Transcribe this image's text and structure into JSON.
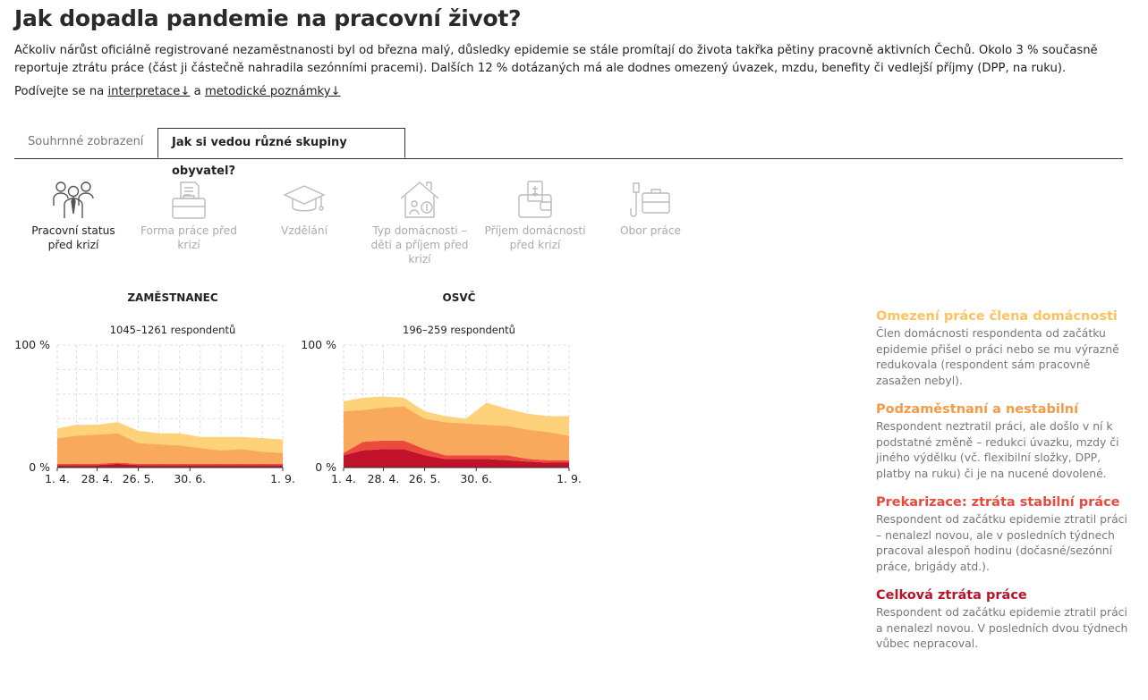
{
  "page": {
    "title": "Jak dopadla pandemie na pracovní život?",
    "intro": "Ačkoliv nárůst oficiálně registrované nezaměstnanosti byl od března malý, důsledky epidemie se stále promítají do života takřka pětiny pracovně aktivních Čechů. Okolo 3 % současně reportuje ztrátu práce (část ji částečně nahradila sezónními pracemi). Dalších 12 % dotázaných má ale dodnes omezený úvazek, mzdu, benefity či vedlejší příjmy (DPP, na ruku).",
    "links_prefix": "Podívejte se na ",
    "link_interpretace": "interpretace↓",
    "links_and": " a ",
    "link_metodika": "metodické poznámky↓"
  },
  "tabs": [
    {
      "label": "Souhrnné zobrazení",
      "active": false
    },
    {
      "label": "Jak si vedou různé skupiny obyvatel?",
      "active": true
    }
  ],
  "categories": [
    {
      "label": "Pracovní status před krizí",
      "icon": "people-icon",
      "active": true
    },
    {
      "label": "Forma práce před krizí",
      "icon": "briefcase-contract-icon",
      "active": false
    },
    {
      "label": "Vzdělání",
      "icon": "graduation-cap-icon",
      "active": false
    },
    {
      "label": "Typ domácnosti – děti a příjem před krizí",
      "icon": "house-money-icon",
      "active": false
    },
    {
      "label": "Příjem domácnosti před krizí",
      "icon": "wallet-icon",
      "active": false
    },
    {
      "label": "Obor práce",
      "icon": "tools-briefcase-icon",
      "active": false
    }
  ],
  "colors": {
    "omezeni": "#fdd27a",
    "podzamestnani": "#f9a95b",
    "prekarizace": "#ec4a3c",
    "ztrata": "#c0132b",
    "grid": "#dddddd"
  },
  "legend": [
    {
      "key": "omezeni",
      "title": "Omezení práce člena domácnosti",
      "desc": "Člen domácnosti respondenta od začátku epidemie přišel o práci nebo se mu výrazně redukovala (respondent sám pracovně zasažen nebyl)."
    },
    {
      "key": "podzamestnani",
      "title": "Podzaměstnaní a nestabilní",
      "desc": "Respondent neztratil práci, ale došlo v ní k podstatné změně – redukci úvazku, mzdy či jiného výdělku (vč. flexibilní složky, DPP, platby na ruku) či je na nucené dovolené."
    },
    {
      "key": "prekarizace",
      "title": "Prekarizace: ztráta stabilní práce",
      "desc": "Respondent od začátku epidemie ztratil práci – nenalezl novou, ale v posledních týdnech pracoval alespoň hodinu (dočasné/sezónní práce, brigády atd.)."
    },
    {
      "key": "ztrata",
      "title": "Celková ztráta práce",
      "desc": "Respondent od začátku epidemie ztratil práci a nenalezl novou. V posledních dvou týdnech vůbec nepracoval."
    }
  ],
  "chart_data": [
    {
      "type": "area",
      "stacked": true,
      "title": "ZAMĚSTNANEC",
      "subtitle": "1045–1261 respondentů",
      "x": [
        "2020-04-01",
        "2020-04-14",
        "2020-04-28",
        "2020-05-12",
        "2020-05-26",
        "2020-06-09",
        "2020-06-23",
        "2020-07-07",
        "2020-07-21",
        "2020-08-04",
        "2020-08-18",
        "2020-09-01"
      ],
      "x_tick_labels": [
        "1. 4.",
        "28. 4.",
        "26. 5.",
        "30. 6.",
        "1. 9."
      ],
      "x_tick_dates": [
        "2020-04-01",
        "2020-04-28",
        "2020-05-26",
        "2020-06-30",
        "2020-09-01"
      ],
      "y_tick_labels": [
        "100 %",
        "0 %"
      ],
      "ylim": [
        0,
        100
      ],
      "grid": true,
      "series": [
        {
          "key": "ztrata",
          "values": [
            2,
            2,
            2,
            3,
            2,
            2,
            2,
            2,
            2,
            2,
            2,
            2
          ]
        },
        {
          "key": "prekarizace",
          "values": [
            1,
            1,
            1,
            1,
            1,
            1,
            1,
            1,
            1,
            1,
            1,
            1
          ]
        },
        {
          "key": "podzamestnani",
          "values": [
            21,
            23,
            24,
            24,
            17,
            16,
            15,
            13,
            11,
            12,
            10,
            9
          ]
        },
        {
          "key": "omezeni",
          "values": [
            8,
            9,
            8,
            9,
            10,
            9,
            10,
            9,
            11,
            10,
            11,
            11
          ]
        }
      ]
    },
    {
      "type": "area",
      "stacked": true,
      "title": "OSVČ",
      "subtitle": "196–259 respondentů",
      "x": [
        "2020-04-01",
        "2020-04-14",
        "2020-04-28",
        "2020-05-12",
        "2020-05-26",
        "2020-06-09",
        "2020-06-23",
        "2020-07-07",
        "2020-07-21",
        "2020-08-04",
        "2020-08-18",
        "2020-09-01"
      ],
      "x_tick_labels": [
        "1. 4.",
        "28. 4.",
        "26. 5.",
        "30. 6.",
        "1. 9."
      ],
      "x_tick_dates": [
        "2020-04-01",
        "2020-04-28",
        "2020-05-26",
        "2020-06-30",
        "2020-09-01"
      ],
      "y_tick_labels": [
        "100 %",
        "0 %"
      ],
      "ylim": [
        0,
        100
      ],
      "grid": true,
      "series": [
        {
          "key": "ztrata",
          "values": [
            10,
            14,
            15,
            15,
            10,
            7,
            7,
            7,
            6,
            5,
            4,
            4
          ]
        },
        {
          "key": "prekarizace",
          "values": [
            2,
            7,
            7,
            7,
            5,
            3,
            3,
            3,
            4,
            2,
            2,
            2
          ]
        },
        {
          "key": "podzamestnani",
          "values": [
            34,
            26,
            27,
            28,
            25,
            27,
            26,
            25,
            24,
            24,
            23,
            20
          ]
        },
        {
          "key": "omezeni",
          "values": [
            8,
            10,
            9,
            7,
            6,
            5,
            4,
            18,
            14,
            13,
            13,
            16
          ]
        }
      ]
    }
  ]
}
